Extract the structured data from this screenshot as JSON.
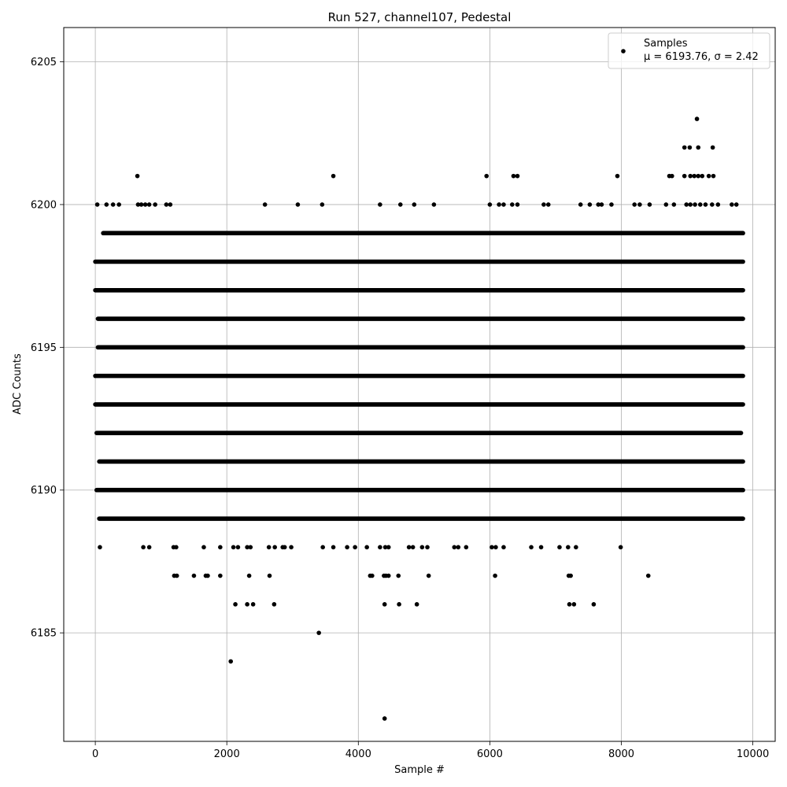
{
  "chart_data": {
    "type": "scatter",
    "title": "Run 527, channel107, Pedestal",
    "xlabel": "Sample #",
    "ylabel": "ADC Counts",
    "xlim": [
      -480,
      10340
    ],
    "ylim": [
      6181.2,
      6206.2
    ],
    "x_ticks": [
      0,
      2000,
      4000,
      6000,
      8000,
      10000
    ],
    "x_tick_labels": [
      "0",
      "2000",
      "4000",
      "6000",
      "8000",
      "10000"
    ],
    "y_ticks": [
      6185,
      6190,
      6195,
      6200,
      6205
    ],
    "y_tick_labels": [
      "6185",
      "6190",
      "6195",
      "6200",
      "6205"
    ],
    "grid": true,
    "legend_position": "top-right",
    "marker_color": "#000000",
    "series": [
      {
        "name": "Samples",
        "legend_stats": "μ = 6193.76, σ = 2.42",
        "color": "#000000",
        "dense_levels": [
          {
            "y": 6193,
            "x_range": [
              0,
              9850
            ]
          },
          {
            "y": 6194,
            "x_range": [
              0,
              9850
            ]
          },
          {
            "y": 6195,
            "x_range": [
              40,
              9850
            ]
          },
          {
            "y": 6196,
            "x_range": [
              40,
              9850
            ]
          },
          {
            "y": 6197,
            "x_range": [
              0,
              9850
            ]
          },
          {
            "y": 6198,
            "x_range": [
              0,
              9850
            ]
          },
          {
            "y": 6191,
            "x_range": [
              60,
              9850
            ]
          },
          {
            "y": 6192,
            "x_range": [
              20,
              9820
            ]
          },
          {
            "y": 6199,
            "x_range": [
              120,
              9850
            ]
          },
          {
            "y": 6190,
            "x_range": [
              20,
              9850
            ]
          },
          {
            "y": 6189,
            "x_range": [
              60,
              9850
            ]
          }
        ],
        "points": [
          [
            70,
            6188
          ],
          [
            730,
            6188
          ],
          [
            820,
            6188
          ],
          [
            1190,
            6188
          ],
          [
            1230,
            6188
          ],
          [
            1650,
            6188
          ],
          [
            1900,
            6188
          ],
          [
            2100,
            6188
          ],
          [
            2170,
            6188
          ],
          [
            2310,
            6188
          ],
          [
            2360,
            6188
          ],
          [
            2640,
            6188
          ],
          [
            2730,
            6188
          ],
          [
            2850,
            6188
          ],
          [
            2880,
            6188
          ],
          [
            2980,
            6188
          ],
          [
            3460,
            6188
          ],
          [
            3620,
            6188
          ],
          [
            3830,
            6188
          ],
          [
            3950,
            6188
          ],
          [
            4130,
            6188
          ],
          [
            4330,
            6188
          ],
          [
            4410,
            6188
          ],
          [
            4460,
            6188
          ],
          [
            4770,
            6188
          ],
          [
            4830,
            6188
          ],
          [
            4970,
            6188
          ],
          [
            5050,
            6188
          ],
          [
            5460,
            6188
          ],
          [
            5520,
            6188
          ],
          [
            5640,
            6188
          ],
          [
            6030,
            6188
          ],
          [
            6090,
            6188
          ],
          [
            6210,
            6188
          ],
          [
            6630,
            6188
          ],
          [
            6780,
            6188
          ],
          [
            7060,
            6188
          ],
          [
            7190,
            6188
          ],
          [
            7310,
            6188
          ],
          [
            7990,
            6188
          ],
          [
            1200,
            6187
          ],
          [
            1240,
            6187
          ],
          [
            1500,
            6187
          ],
          [
            1680,
            6187
          ],
          [
            1710,
            6187
          ],
          [
            1900,
            6187
          ],
          [
            2340,
            6187
          ],
          [
            2650,
            6187
          ],
          [
            4180,
            6187
          ],
          [
            4210,
            6187
          ],
          [
            4390,
            6187
          ],
          [
            4420,
            6187
          ],
          [
            4460,
            6187
          ],
          [
            4610,
            6187
          ],
          [
            5070,
            6187
          ],
          [
            6080,
            6187
          ],
          [
            7200,
            6187
          ],
          [
            7230,
            6187
          ],
          [
            8410,
            6187
          ],
          [
            2130,
            6186
          ],
          [
            2310,
            6186
          ],
          [
            2400,
            6186
          ],
          [
            2720,
            6186
          ],
          [
            4400,
            6186
          ],
          [
            4620,
            6186
          ],
          [
            4890,
            6186
          ],
          [
            7210,
            6186
          ],
          [
            7280,
            6186
          ],
          [
            7580,
            6186
          ],
          [
            3400,
            6185
          ],
          [
            2060,
            6184
          ],
          [
            4400,
            6182
          ],
          [
            30,
            6200
          ],
          [
            170,
            6200
          ],
          [
            270,
            6200
          ],
          [
            360,
            6200
          ],
          [
            650,
            6200
          ],
          [
            700,
            6200
          ],
          [
            760,
            6200
          ],
          [
            820,
            6200
          ],
          [
            910,
            6200
          ],
          [
            1080,
            6200
          ],
          [
            1140,
            6200
          ],
          [
            2580,
            6200
          ],
          [
            3080,
            6200
          ],
          [
            3450,
            6200
          ],
          [
            4330,
            6200
          ],
          [
            4640,
            6200
          ],
          [
            4850,
            6200
          ],
          [
            5150,
            6200
          ],
          [
            6000,
            6200
          ],
          [
            6140,
            6200
          ],
          [
            6210,
            6200
          ],
          [
            6340,
            6200
          ],
          [
            6420,
            6200
          ],
          [
            6820,
            6200
          ],
          [
            6890,
            6200
          ],
          [
            7380,
            6200
          ],
          [
            7520,
            6200
          ],
          [
            7650,
            6200
          ],
          [
            7700,
            6200
          ],
          [
            7850,
            6200
          ],
          [
            8200,
            6200
          ],
          [
            8280,
            6200
          ],
          [
            8430,
            6200
          ],
          [
            8680,
            6200
          ],
          [
            8800,
            6200
          ],
          [
            8990,
            6200
          ],
          [
            9050,
            6200
          ],
          [
            9120,
            6200
          ],
          [
            9200,
            6200
          ],
          [
            9280,
            6200
          ],
          [
            9380,
            6200
          ],
          [
            9470,
            6200
          ],
          [
            9680,
            6200
          ],
          [
            9750,
            6200
          ],
          [
            640,
            6201
          ],
          [
            3620,
            6201
          ],
          [
            5950,
            6201
          ],
          [
            6360,
            6201
          ],
          [
            6420,
            6201
          ],
          [
            7940,
            6201
          ],
          [
            8730,
            6201
          ],
          [
            8770,
            6201
          ],
          [
            8960,
            6201
          ],
          [
            9050,
            6201
          ],
          [
            9110,
            6201
          ],
          [
            9170,
            6201
          ],
          [
            9230,
            6201
          ],
          [
            9330,
            6201
          ],
          [
            9400,
            6201
          ],
          [
            8960,
            6202
          ],
          [
            9040,
            6202
          ],
          [
            9170,
            6202
          ],
          [
            9390,
            6202
          ],
          [
            9150,
            6203
          ]
        ]
      }
    ]
  }
}
